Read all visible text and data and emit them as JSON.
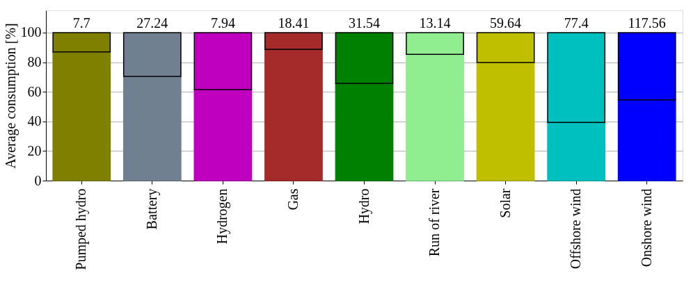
{
  "chart_data": {
    "type": "bar",
    "stacked": true,
    "ylabel": "Average consumption [%]",
    "categories": [
      "Pumped hydro",
      "Battery",
      "Hydrogen",
      "Gas",
      "Hydro",
      "Run of river",
      "Solar",
      "Offshore wind",
      "Onshore wind"
    ],
    "series": [
      {
        "colors": [
          "#808000",
          "#708090",
          "#bf00bf",
          "#a52a2a",
          "#008000",
          "#90ee90",
          "#bfbf00",
          "#00bfbf",
          "#0000ff"
        ],
        "values": [
          87,
          70.4,
          61.5,
          88.7,
          65.7,
          85.3,
          79.8,
          39.3,
          54.6
        ]
      },
      {
        "colors": [
          "#808000",
          "#708090",
          "#bf00bf",
          "#a52a2a",
          "#008000",
          "#90ee90",
          "#bfbf00",
          "#00bfbf",
          "#0000ff"
        ],
        "values": [
          13,
          29.6,
          38.5,
          11.3,
          34.3,
          14.7,
          20.2,
          60.7,
          45.4
        ]
      }
    ],
    "annotations": [
      {
        "text": "7.7",
        "x": "Pumped hydro",
        "y": 100
      },
      {
        "text": "27.24",
        "x": "Battery",
        "y": 100
      },
      {
        "text": "7.94",
        "x": "Hydrogen",
        "y": 100
      },
      {
        "text": "18.41",
        "x": "Gas",
        "y": 100
      },
      {
        "text": "31.54",
        "x": "Hydro",
        "y": 100
      },
      {
        "text": "13.14",
        "x": "Run of river",
        "y": 100
      },
      {
        "text": "59.64",
        "x": "Solar",
        "y": 100
      },
      {
        "text": "77.4",
        "x": "Offshore wind",
        "y": 100
      },
      {
        "text": "117.56",
        "x": "Onshore wind",
        "y": 100
      }
    ],
    "ylim": [
      0,
      115
    ],
    "yticks": [
      0,
      20,
      40,
      60,
      80,
      100
    ],
    "grid": "y"
  }
}
